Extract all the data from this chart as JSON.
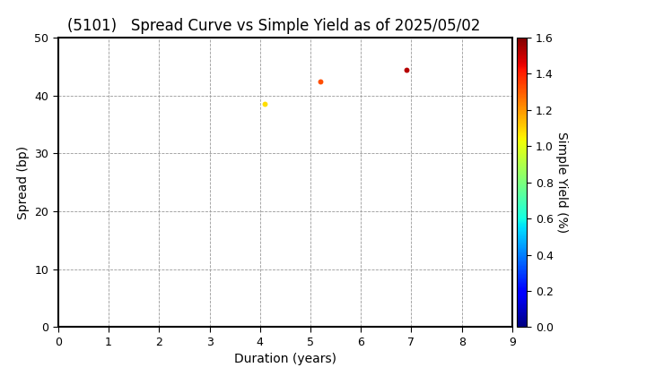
{
  "title": "(5101)   Spread Curve vs Simple Yield as of 2025/05/02",
  "xlabel": "Duration (years)",
  "ylabel": "Spread (bp)",
  "colorbar_label": "Simple Yield (%)",
  "points": [
    {
      "duration": 4.1,
      "spread": 38.5,
      "simple_yield": 1.08
    },
    {
      "duration": 5.2,
      "spread": 42.5,
      "simple_yield": 1.32
    },
    {
      "duration": 6.9,
      "spread": 44.5,
      "simple_yield": 1.52
    }
  ],
  "xlim": [
    0,
    9
  ],
  "ylim": [
    0,
    50
  ],
  "xticks": [
    0,
    1,
    2,
    3,
    4,
    5,
    6,
    7,
    8,
    9
  ],
  "yticks": [
    0,
    10,
    20,
    30,
    40,
    50
  ],
  "colorbar_vmin": 0.0,
  "colorbar_vmax": 1.6,
  "colorbar_ticks": [
    0.0,
    0.2,
    0.4,
    0.6,
    0.8,
    1.0,
    1.2,
    1.4,
    1.6
  ],
  "marker_size": 18,
  "background_color": "#ffffff",
  "grid_color": "#999999",
  "spine_color": "#000000",
  "spine_linewidth": 1.5,
  "title_fontsize": 12,
  "axis_label_fontsize": 10,
  "tick_fontsize": 9
}
